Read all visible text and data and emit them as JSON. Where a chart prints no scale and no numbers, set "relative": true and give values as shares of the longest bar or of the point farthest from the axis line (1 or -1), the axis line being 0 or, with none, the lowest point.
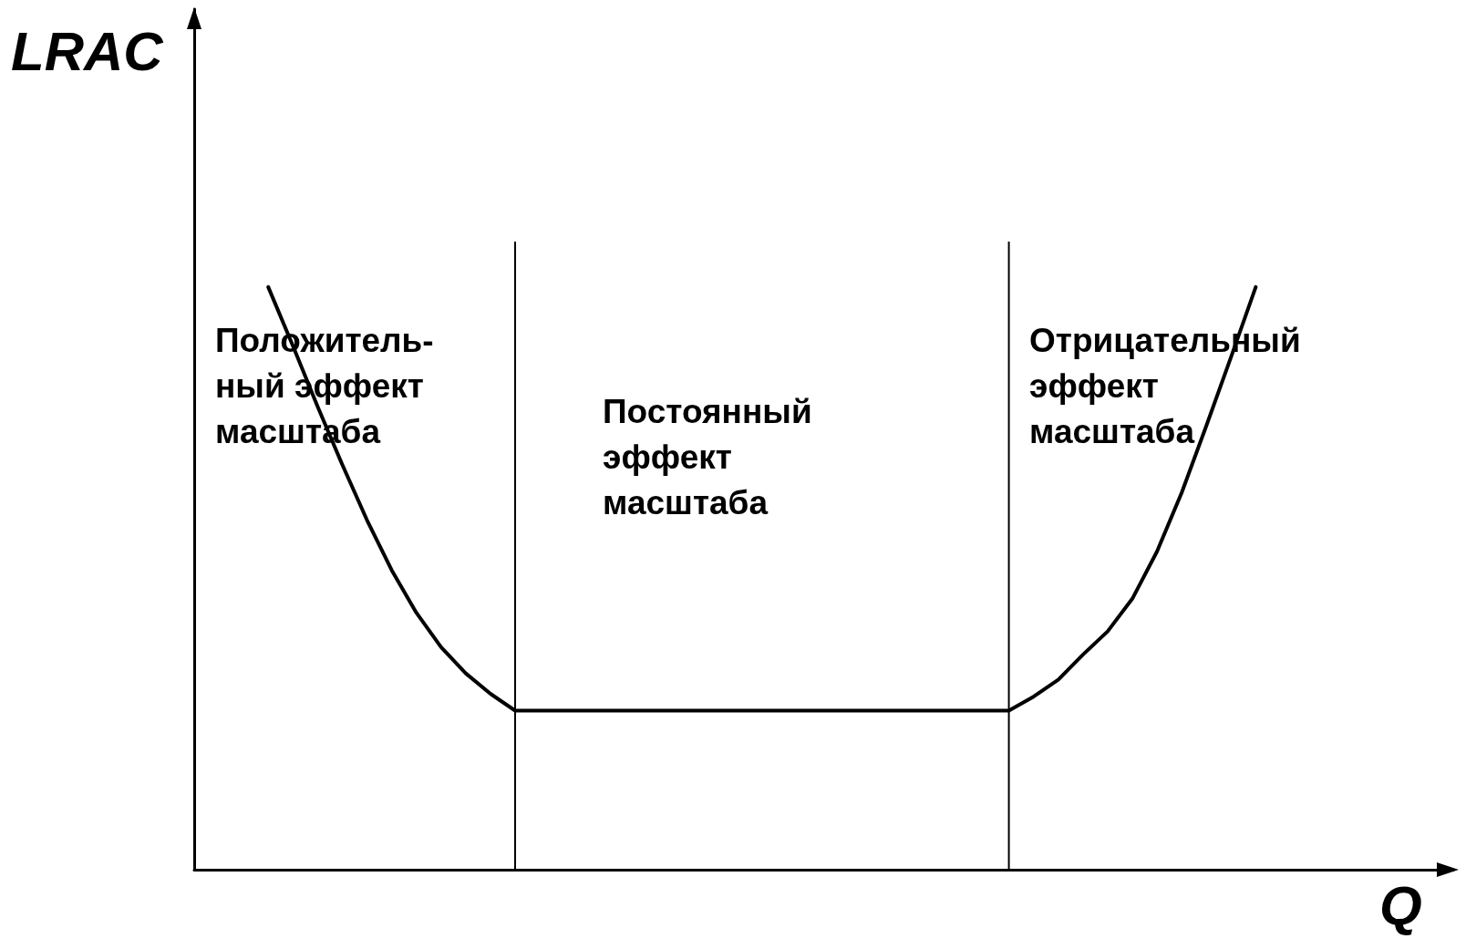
{
  "chart_data": {
    "type": "line",
    "xlabel": "Q",
    "ylabel": "LRAC",
    "relative": true,
    "grid": false,
    "marker": "none",
    "line_style": "solid",
    "categories": [
      null,
      null,
      null,
      null,
      null,
      null,
      null,
      null,
      null,
      null,
      null,
      null,
      null,
      null,
      null,
      null,
      null,
      null,
      null,
      null,
      null,
      null,
      null,
      null,
      null,
      null,
      null,
      null,
      null,
      null,
      null,
      null,
      null,
      null,
      null,
      null,
      null,
      null,
      null,
      null,
      null,
      null,
      null,
      null,
      null,
      null,
      null,
      null,
      null,
      null,
      null,
      null
    ],
    "series": [
      {
        "color": "#000000",
        "values": [
          null,
          null,
          null,
          1,
          0.899,
          0.795,
          0.695,
          0.6,
          0.514,
          0.441,
          0.382,
          0.337,
          0.302,
          0.273,
          0.273,
          0.273,
          0.273,
          0.273,
          0.273,
          0.273,
          0.273,
          0.273,
          0.273,
          0.273,
          0.273,
          0.273,
          0.273,
          0.273,
          0.273,
          0.273,
          0.273,
          0.273,
          0.273,
          0.273,
          0.297,
          0.326,
          0.369,
          0.409,
          0.465,
          0.546,
          0.647,
          0.762,
          0.88,
          1,
          null,
          null,
          null,
          null,
          null,
          null,
          null,
          null
        ]
      }
    ],
    "annotations": [
      "Положитель-\nный эффект\nмасштаба",
      "Постоянный\nэффект\nмасштаба",
      "Отрицательный\nэффект\nмасштаба"
    ]
  }
}
